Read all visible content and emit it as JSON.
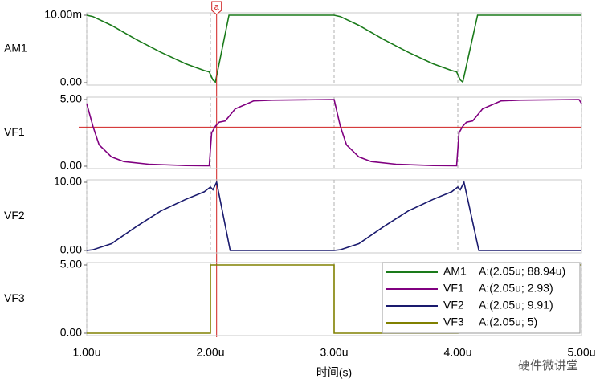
{
  "chart_data": [
    {
      "type": "line",
      "x": [
        1e-06,
        1.05e-06,
        1.2e-06,
        1.4e-06,
        1.6e-06,
        1.8e-06,
        1.95e-06,
        1.99e-06,
        2.02e-06,
        2.04e-06,
        2.15e-06,
        3e-06,
        3.05e-06,
        3.2e-06,
        3.4e-06,
        3.6e-06,
        3.8e-06,
        3.95e-06,
        3.99e-06,
        4.02e-06,
        4.04e-06,
        4.16e-06,
        5e-06
      ],
      "series": [
        {
          "name": "AM1",
          "color": "#1a7a1a",
          "readout": "A:(2.05u; 88.94u)",
          "values": [
            0.01,
            0.0098,
            0.0085,
            0.0064,
            0.0045,
            0.0028,
            0.0018,
            0.0016,
            0.0004,
            0.0001,
            0.01,
            0.01,
            0.0098,
            0.0085,
            0.0064,
            0.0045,
            0.0028,
            0.0018,
            0.0016,
            0.0004,
            0.0001,
            0.01,
            0.01
          ]
        }
      ],
      "xlim": [
        1e-06,
        5e-06
      ],
      "xticks": [
        {
          "value": 1e-06,
          "label": "1.00u"
        },
        {
          "value": 2e-06,
          "label": "2.00u"
        },
        {
          "value": 3e-06,
          "label": "3.00u"
        },
        {
          "value": 4e-06,
          "label": "4.00u"
        },
        {
          "value": 5e-06,
          "label": "5.00u"
        }
      ],
      "ylim": [
        0,
        0.01
      ],
      "yticks": [
        {
          "value": 0.01,
          "label": "10.00m"
        },
        {
          "value": 0,
          "label": "0.00"
        }
      ],
      "cursor": {
        "label": "a",
        "x": 2.05e-06
      }
    },
    {
      "type": "line",
      "x": [
        1e-06,
        1.05e-06,
        1.1e-06,
        1.2e-06,
        1.3e-06,
        1.5e-06,
        1.8e-06,
        1.99e-06,
        2.01e-06,
        2.04e-06,
        2.07e-06,
        2.12e-06,
        2.2e-06,
        2.35e-06,
        2.5e-06,
        3e-06,
        3.05e-06,
        3.1e-06,
        3.2e-06,
        3.3e-06,
        3.5e-06,
        3.8e-06,
        3.99e-06,
        4.01e-06,
        4.04e-06,
        4.07e-06,
        4.12e-06,
        4.2e-06,
        4.35e-06,
        4.5e-06,
        4.98e-06,
        5e-06
      ],
      "series": [
        {
          "name": "VF1",
          "color": "#800080",
          "readout": "A:(2.05u; 2.93)",
          "values": [
            4.7,
            3.0,
            1.6,
            0.7,
            0.35,
            0.15,
            0.05,
            0.03,
            2.5,
            3.0,
            3.3,
            3.4,
            4.3,
            4.9,
            4.95,
            5.0,
            3.0,
            1.6,
            0.7,
            0.35,
            0.15,
            0.05,
            0.03,
            2.5,
            3.0,
            3.3,
            3.4,
            4.3,
            4.9,
            4.95,
            5.0,
            4.7
          ]
        }
      ],
      "xlim": [
        1e-06,
        5e-06
      ],
      "xticks": [
        {
          "value": 1e-06,
          "label": "1.00u"
        },
        {
          "value": 2e-06,
          "label": "2.00u"
        },
        {
          "value": 3e-06,
          "label": "3.00u"
        },
        {
          "value": 4e-06,
          "label": "4.00u"
        },
        {
          "value": 5e-06,
          "label": "5.00u"
        }
      ],
      "ylim": [
        0,
        5
      ],
      "yticks": [
        {
          "value": 5,
          "label": "5.00"
        },
        {
          "value": 0,
          "label": "0.00"
        }
      ],
      "hline": 2.93
    },
    {
      "type": "line",
      "x": [
        1e-06,
        1.05e-06,
        1.2e-06,
        1.4e-06,
        1.6e-06,
        1.8e-06,
        1.95e-06,
        2e-06,
        2.02e-06,
        2.05e-06,
        2.16e-06,
        3e-06,
        3.05e-06,
        3.2e-06,
        3.4e-06,
        3.6e-06,
        3.8e-06,
        3.95e-06,
        4e-06,
        4.02e-06,
        4.05e-06,
        4.17e-06,
        5e-06
      ],
      "series": [
        {
          "name": "VF2",
          "color": "#1a1a6e",
          "readout": "A:(2.05u; 9.91)",
          "values": [
            0,
            0.1,
            1.0,
            3.5,
            5.8,
            7.5,
            8.6,
            9.3,
            8.9,
            10,
            0,
            0,
            0.1,
            1.0,
            3.5,
            5.8,
            7.5,
            8.6,
            9.3,
            8.9,
            10,
            0,
            0
          ]
        }
      ],
      "xlim": [
        1e-06,
        5e-06
      ],
      "xticks": [
        {
          "value": 1e-06,
          "label": "1.00u"
        },
        {
          "value": 2e-06,
          "label": "2.00u"
        },
        {
          "value": 3e-06,
          "label": "3.00u"
        },
        {
          "value": 4e-06,
          "label": "4.00u"
        },
        {
          "value": 5e-06,
          "label": "5.00u"
        }
      ],
      "ylim": [
        0,
        10
      ],
      "yticks": [
        {
          "value": 10,
          "label": "10.00"
        },
        {
          "value": 0,
          "label": "0.00"
        }
      ]
    },
    {
      "type": "line",
      "x": [
        1e-06,
        2e-06,
        2e-06,
        3e-06,
        3e-06,
        4e-06,
        4e-06,
        5e-06
      ],
      "series": [
        {
          "name": "VF3",
          "color": "#808000",
          "readout": "A:(2.05u; 5)",
          "values": [
            0,
            0,
            5,
            5,
            0,
            0,
            5,
            5
          ]
        }
      ],
      "xlim": [
        1e-06,
        5e-06
      ],
      "xticks": [
        {
          "value": 1e-06,
          "label": "1.00u"
        },
        {
          "value": 2e-06,
          "label": "2.00u"
        },
        {
          "value": 3e-06,
          "label": "3.00u"
        },
        {
          "value": 4e-06,
          "label": "4.00u"
        },
        {
          "value": 5e-06,
          "label": "5.00u"
        }
      ],
      "ylim": [
        0,
        5
      ],
      "yticks": [
        {
          "value": 5,
          "label": "5.00"
        },
        {
          "value": 0,
          "label": "0.00"
        }
      ],
      "xlabel": "时间(s)"
    }
  ],
  "watermark": "硬件微讲堂"
}
